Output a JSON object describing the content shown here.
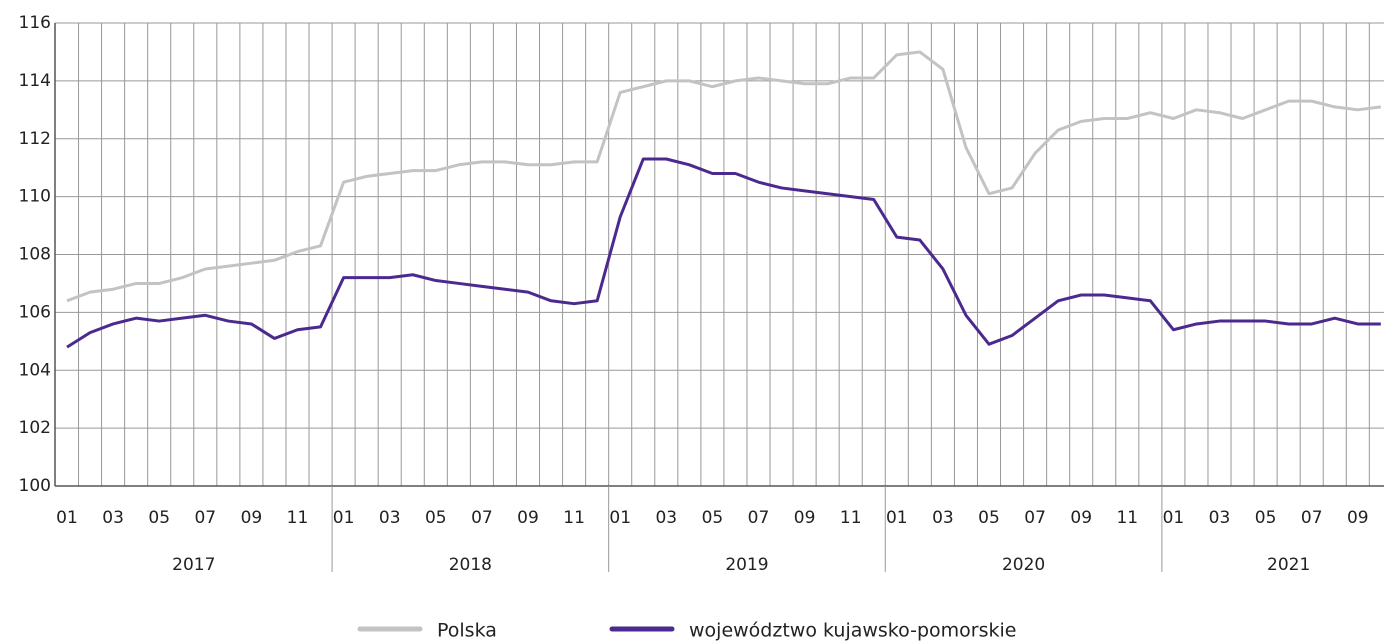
{
  "chart_data": {
    "type": "line",
    "categories": [
      "01",
      null,
      "03",
      null,
      "05",
      null,
      "07",
      null,
      "09",
      null,
      "11",
      null,
      "01",
      null,
      "03",
      null,
      "05",
      null,
      "07",
      null,
      "09",
      null,
      "11",
      null,
      "01",
      null,
      "03",
      null,
      "05",
      null,
      "07",
      null,
      "09",
      null,
      "11",
      null,
      "01",
      null,
      "03",
      null,
      "05",
      null,
      "07",
      null,
      "09",
      null,
      "11",
      null,
      "01",
      null,
      "03",
      null,
      "05",
      null,
      "07",
      null,
      "09",
      null
    ],
    "years": [
      "2017",
      "2018",
      "2019",
      "2020",
      "2021"
    ],
    "series": [
      {
        "name": "Polska",
        "color": "#c3c3c3",
        "values": [
          106.4,
          106.7,
          106.8,
          107.0,
          107.0,
          107.2,
          107.5,
          107.6,
          107.7,
          107.8,
          108.1,
          108.3,
          110.5,
          110.7,
          110.8,
          110.9,
          110.9,
          111.1,
          111.2,
          111.2,
          111.1,
          111.1,
          111.2,
          111.2,
          113.6,
          113.8,
          114.0,
          114.0,
          113.8,
          114.0,
          114.1,
          114.0,
          113.9,
          113.9,
          114.1,
          114.1,
          114.9,
          115.0,
          114.4,
          111.7,
          110.1,
          110.3,
          111.5,
          112.3,
          112.6,
          112.7,
          112.7,
          112.9,
          112.7,
          113.0,
          112.9,
          112.7,
          113.0,
          113.3,
          113.3,
          113.1,
          113.0,
          113.1
        ]
      },
      {
        "name": "województwo kujawsko-pomorskie",
        "color": "#4b2a8f",
        "values": [
          104.8,
          105.3,
          105.6,
          105.8,
          105.7,
          105.8,
          105.9,
          105.7,
          105.6,
          105.1,
          105.4,
          105.5,
          107.2,
          107.2,
          107.2,
          107.3,
          107.1,
          107.0,
          106.9,
          106.8,
          106.7,
          106.4,
          106.3,
          106.4,
          109.3,
          111.3,
          111.3,
          111.1,
          110.8,
          110.8,
          110.5,
          110.3,
          110.2,
          110.1,
          110.0,
          109.9,
          108.6,
          108.5,
          107.5,
          105.9,
          104.9,
          105.2,
          105.8,
          106.4,
          106.6,
          106.6,
          106.5,
          106.4,
          105.4,
          105.6,
          105.7,
          105.7,
          105.7,
          105.6,
          105.6,
          105.8,
          105.6,
          105.6
        ]
      }
    ],
    "ylim": [
      100,
      116
    ],
    "yticks": [
      100,
      102,
      104,
      106,
      108,
      110,
      112,
      114,
      116
    ],
    "grid": true
  }
}
